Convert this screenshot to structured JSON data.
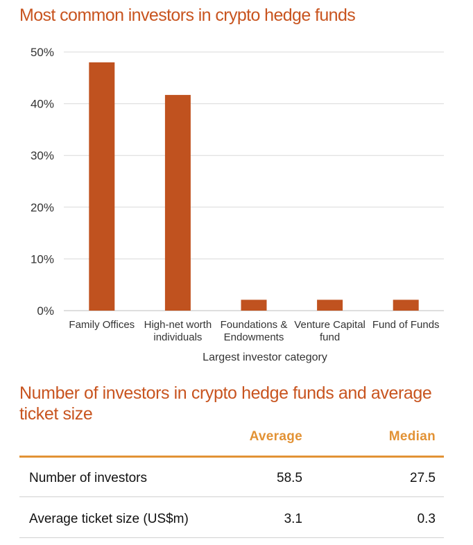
{
  "chart_data": {
    "type": "bar",
    "title": "Most common investors in crypto hedge funds",
    "categories": [
      [
        "Family Offices"
      ],
      [
        "High-net worth",
        "individuals"
      ],
      [
        "Foundations &",
        "Endowments"
      ],
      [
        "Venture Capital",
        "fund"
      ],
      [
        "Fund of Funds"
      ]
    ],
    "values": [
      48,
      41.7,
      2.1,
      2.1,
      2.1
    ],
    "xlabel": "Largest investor category",
    "ylabel": "",
    "ylim": [
      0,
      50
    ],
    "yticks": [
      "0%",
      "10%",
      "20%",
      "30%",
      "40%",
      "50%"
    ],
    "grid": true,
    "bar_color": "#c0521f"
  },
  "table": {
    "title": "Number of investors in crypto hedge funds and average ticket size",
    "headers": [
      "Average",
      "Median"
    ],
    "rows": [
      {
        "label": "Number of investors",
        "average": "58.5",
        "median": "27.5"
      },
      {
        "label": "Average ticket size (US$m)",
        "average": "3.1",
        "median": "0.3"
      }
    ],
    "accent_color": "#e29235",
    "title_color": "#c8541f"
  }
}
